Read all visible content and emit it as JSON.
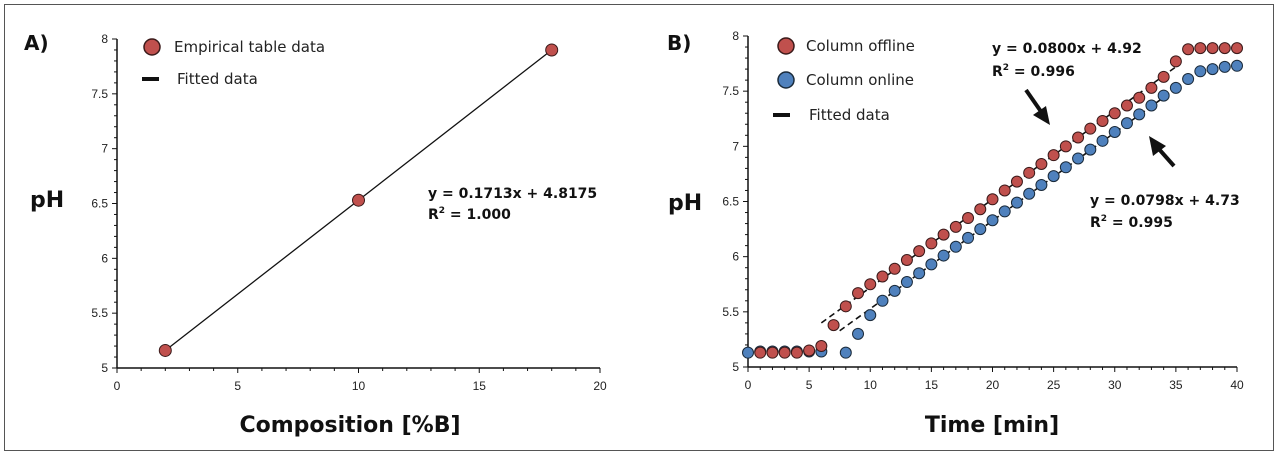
{
  "chart_data": [
    {
      "type": "scatter",
      "panel_label": "A)",
      "xlabel": "Composition [%B]",
      "ylabel": "pH",
      "xlim": [
        0,
        20
      ],
      "ylim": [
        5,
        8
      ],
      "xticks": [
        "0",
        "5",
        "10",
        "15",
        "20"
      ],
      "yticks": [
        "5",
        "5.5",
        "6",
        "6.5",
        "7",
        "7.5",
        "8"
      ],
      "grid": false,
      "legend_position": "top-left",
      "series": [
        {
          "name": "Empirical table data",
          "color": "#c0504d",
          "x": [
            2,
            10,
            18
          ],
          "y": [
            5.16,
            6.53,
            7.9
          ]
        },
        {
          "name": "Fitted data",
          "style": "line",
          "color": "#111111",
          "x": [
            2,
            18
          ],
          "y": [
            5.16,
            7.9
          ]
        }
      ],
      "annotations": {
        "equation": "y = 0.1713x + 4.8175",
        "r2_label": "R",
        "r2_value": " = 1.000"
      }
    },
    {
      "type": "scatter",
      "panel_label": "B)",
      "xlabel": "Time [min]",
      "ylabel": "pH",
      "xlim": [
        0,
        40
      ],
      "ylim": [
        5,
        8
      ],
      "xticks": [
        "0",
        "5",
        "10",
        "15",
        "20",
        "25",
        "30",
        "35",
        "40"
      ],
      "yticks": [
        "5",
        "5.5",
        "6",
        "6.5",
        "7",
        "7.5",
        "8"
      ],
      "grid": false,
      "legend_position": "top-left",
      "series": [
        {
          "name": "Column offline",
          "color": "#c0504d",
          "x": [
            1,
            2,
            3,
            4,
            5,
            6,
            7,
            8,
            9,
            10,
            11,
            12,
            13,
            14,
            15,
            16,
            17,
            18,
            19,
            20,
            21,
            22,
            23,
            24,
            25,
            26,
            27,
            28,
            29,
            30,
            31,
            32,
            33,
            34,
            35,
            36,
            37,
            38,
            39,
            40
          ],
          "y": [
            5.13,
            5.13,
            5.13,
            5.13,
            5.15,
            5.19,
            5.38,
            5.55,
            5.67,
            5.75,
            5.82,
            5.89,
            5.97,
            6.05,
            6.12,
            6.2,
            6.27,
            6.35,
            6.43,
            6.52,
            6.6,
            6.68,
            6.76,
            6.84,
            6.92,
            7.0,
            7.08,
            7.16,
            7.23,
            7.3,
            7.37,
            7.44,
            7.53,
            7.63,
            7.77,
            7.88,
            7.89,
            7.89,
            7.89,
            7.89
          ]
        },
        {
          "name": "Column online",
          "color": "#4f81bd",
          "x": [
            0,
            1,
            2,
            3,
            4,
            5,
            6,
            8,
            9,
            10,
            11,
            12,
            13,
            14,
            15,
            16,
            17,
            18,
            19,
            20,
            21,
            22,
            23,
            24,
            25,
            26,
            27,
            28,
            29,
            30,
            31,
            32,
            33,
            34,
            35,
            36,
            37,
            38,
            39,
            40
          ],
          "y": [
            5.13,
            5.14,
            5.14,
            5.14,
            5.14,
            5.14,
            5.14,
            5.13,
            5.3,
            5.47,
            5.6,
            5.69,
            5.77,
            5.85,
            5.93,
            6.01,
            6.09,
            6.17,
            6.25,
            6.33,
            6.41,
            6.49,
            6.57,
            6.65,
            6.73,
            6.81,
            6.89,
            6.97,
            7.05,
            7.13,
            7.21,
            7.29,
            7.37,
            7.46,
            7.53,
            7.61,
            7.68,
            7.7,
            7.72,
            7.73
          ]
        },
        {
          "name": "Fitted data",
          "style": "dashed",
          "color": "#111111"
        }
      ],
      "fits": [
        {
          "series": "Column offline",
          "slope": 0.08,
          "intercept": 4.92,
          "x_range": [
            6,
            35
          ]
        },
        {
          "series": "Column online",
          "slope": 0.0798,
          "intercept": 4.73,
          "x_range": [
            7.5,
            35
          ]
        }
      ],
      "annotations": [
        {
          "equation": "y = 0.0800x + 4.92",
          "r2_label": "R",
          "r2_value": " = 0.996"
        },
        {
          "equation": "y = 0.0798x + 4.73",
          "r2_label": "R",
          "r2_value": " = 0.995"
        }
      ]
    }
  ]
}
